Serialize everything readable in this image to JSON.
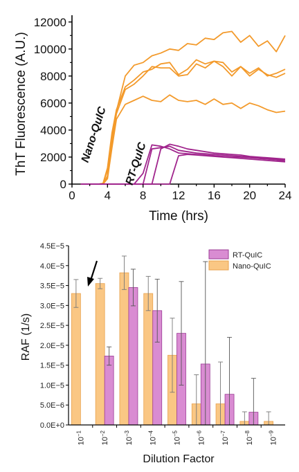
{
  "chart_data": [
    {
      "type": "line",
      "xlabel": "Time (hrs)",
      "ylabel": "ThT Fluorescence (A.U.)",
      "xlim": [
        0,
        24
      ],
      "ylim": [
        0,
        12500
      ],
      "x_ticks": [
        "0",
        "4",
        "8",
        "12",
        "16",
        "20",
        "24"
      ],
      "y_ticks": [
        "0",
        "2000",
        "4000",
        "6000",
        "8000",
        "10000",
        "12000"
      ],
      "x": [
        1,
        2,
        3,
        3.5,
        4,
        4.5,
        5,
        6,
        7,
        8,
        9,
        10,
        11,
        12,
        13,
        14,
        15,
        16,
        17,
        18,
        19,
        20,
        21,
        22,
        23,
        24
      ],
      "series": [
        {
          "values": [
            0,
            0,
            0,
            50,
            1000,
            3500,
            5400,
            8000,
            8800,
            9000,
            9500,
            9700,
            10000,
            9900,
            10400,
            10300,
            10800,
            10700,
            11200,
            11300,
            10500,
            11000,
            10200,
            10600,
            9800,
            11000
          ]
        },
        {
          "values": [
            0,
            0,
            0,
            50,
            1200,
            3800,
            5500,
            7200,
            7700,
            8300,
            8500,
            8900,
            9000,
            8100,
            8500,
            9200,
            8900,
            9100,
            9000,
            8300,
            8700,
            8200,
            8600,
            8000,
            8200,
            8500
          ]
        },
        {
          "values": [
            0,
            0,
            0,
            0,
            600,
            3000,
            5200,
            7000,
            7400,
            8000,
            8700,
            8600,
            8600,
            8000,
            8100,
            8900,
            8600,
            9100,
            8700,
            8000,
            8700,
            8000,
            8500,
            8100,
            7900,
            8200
          ]
        },
        {
          "values": [
            0,
            0,
            0,
            0,
            400,
            2700,
            4800,
            5900,
            6200,
            6500,
            6200,
            6100,
            6600,
            6200,
            6100,
            6200,
            5900,
            6300,
            5900,
            6000,
            5600,
            6000,
            5800,
            5500,
            5300,
            5400
          ]
        },
        {
          "values": [
            0,
            0,
            0,
            0,
            0,
            0,
            0,
            0,
            0,
            800,
            2900,
            2800,
            2600,
            2300,
            2250,
            2200,
            2150,
            2100,
            2050,
            2000,
            2000,
            1950,
            1900,
            1850,
            1800,
            1700
          ]
        },
        {
          "values": [
            0,
            0,
            0,
            0,
            0,
            0,
            0,
            0,
            0,
            0,
            2600,
            2700,
            2800,
            2500,
            2400,
            2300,
            2250,
            2200,
            2150,
            2100,
            2050,
            2000,
            1950,
            1900,
            1850,
            1800
          ]
        },
        {
          "values": [
            0,
            0,
            0,
            0,
            0,
            0,
            0,
            0,
            0,
            0,
            0,
            2600,
            2950,
            2800,
            2600,
            2500,
            2400,
            2300,
            2250,
            2200,
            2150,
            2050,
            2000,
            1950,
            1900,
            1850
          ]
        },
        {
          "values": [
            0,
            0,
            0,
            0,
            0,
            0,
            0,
            0,
            0,
            0,
            0,
            0,
            0,
            2100,
            2200,
            2150,
            2100,
            2050,
            2000,
            1950,
            1900,
            1850,
            1800,
            1750,
            1700,
            1650
          ]
        }
      ],
      "series_colors": [
        "#F39A2B",
        "#F39A2B",
        "#F39A2B",
        "#F39A2B",
        "#A0248C",
        "#A0248C",
        "#A0248C",
        "#A0248C"
      ],
      "annotations": [
        "Nano-QuIC",
        "RT-QuIC"
      ]
    },
    {
      "type": "bar",
      "xlabel": "Dilution Factor",
      "ylabel": "RAF (1/s)",
      "ylim": [
        0,
        4.5e-05
      ],
      "y_ticks": [
        "0.0E+0",
        "5.0E−6",
        "1.0E−5",
        "1.5E−5",
        "2.0E−5",
        "2.5E−5",
        "3.0E−5",
        "3.5E−5",
        "4.0E−5",
        "4.5E−5"
      ],
      "categories": [
        {
          "base": "10",
          "exp": "−1"
        },
        {
          "base": "10",
          "exp": "−2"
        },
        {
          "base": "10",
          "exp": "−3"
        },
        {
          "base": "10",
          "exp": "−4"
        },
        {
          "base": "10",
          "exp": "−5"
        },
        {
          "base": "10",
          "exp": "−6"
        },
        {
          "base": "10",
          "exp": "−7"
        },
        {
          "base": "10",
          "exp": "−8"
        },
        {
          "base": "10",
          "exp": "−9"
        }
      ],
      "legend": {
        "position": "top-right",
        "entries": [
          "RT-QuIC",
          "Nano-QuIC"
        ]
      },
      "series": [
        {
          "name": "Nano-QuIC",
          "color": "#FAC784",
          "edge": "#E8A24E",
          "values": [
            3.3e-05,
            3.55e-05,
            3.82e-05,
            3.3e-05,
            1.75e-05,
            5.3e-06,
            5.3e-06,
            9e-07,
            9e-07
          ],
          "errors": [
            3.5e-06,
            1.3e-06,
            4.2e-06,
            4.3e-06,
            9.3e-06,
            7.3e-06,
            1.05e-05,
            2.4e-06,
            2.4e-06
          ]
        },
        {
          "name": "RT-QuIC",
          "color": "#D98CD2",
          "edge": "#9B3B95",
          "values": [
            null,
            1.73e-05,
            3.45e-05,
            2.87e-05,
            2.3e-05,
            1.53e-05,
            7.7e-06,
            3.2e-06,
            null
          ],
          "errors": [
            null,
            2.3e-06,
            4.6e-06,
            7.9e-06,
            1.3e-05,
            2.57e-05,
            1.43e-05,
            8.5e-06,
            null
          ]
        }
      ],
      "arrow_marker": "pointing at 10⁻¹ Nano-QuIC bar"
    }
  ]
}
